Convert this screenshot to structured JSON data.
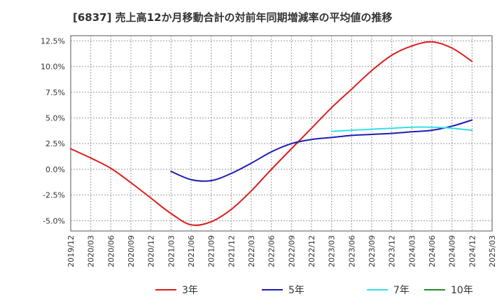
{
  "title": "[6837]  売上高12か月移動合計の対前年同期増減率の平均値の推移",
  "chart_data": {
    "type": "line",
    "title": "[6837]  売上高12か月移動合計の対前年同期増減率の平均値の推移",
    "xlabel": "",
    "ylabel": "",
    "x_ticks": [
      "2019/12",
      "2020/03",
      "2020/06",
      "2020/09",
      "2020/12",
      "2021/03",
      "2021/06",
      "2021/09",
      "2021/12",
      "2022/03",
      "2022/06",
      "2022/09",
      "2022/12",
      "2023/03",
      "2023/06",
      "2023/09",
      "2023/12",
      "2024/03",
      "2024/06",
      "2024/09",
      "2024/12",
      "2025/03"
    ],
    "y_ticks": [
      "12.5%",
      "10.0%",
      "7.5%",
      "5.0%",
      "2.5%",
      "0.0%",
      "-2.5%",
      "-5.0%"
    ],
    "y_tick_values": [
      12.5,
      10.0,
      7.5,
      5.0,
      2.5,
      0.0,
      -2.5,
      -5.0
    ],
    "ylim": [
      -6.0,
      13.0
    ],
    "grid": true,
    "legend_position": "bottom",
    "series": [
      {
        "name": "3年",
        "color": "#dd1c1c",
        "points": [
          [
            "2019/12",
            2.0
          ],
          [
            "2020/03",
            1.1
          ],
          [
            "2020/06",
            0.1
          ],
          [
            "2020/09",
            -1.3
          ],
          [
            "2020/12",
            -2.8
          ],
          [
            "2021/03",
            -4.3
          ],
          [
            "2021/06",
            -5.4
          ],
          [
            "2021/09",
            -5.1
          ],
          [
            "2021/12",
            -3.9
          ],
          [
            "2022/03",
            -2.1
          ],
          [
            "2022/06",
            0.0
          ],
          [
            "2022/09",
            2.0
          ],
          [
            "2022/12",
            4.0
          ],
          [
            "2023/03",
            6.0
          ],
          [
            "2023/06",
            7.8
          ],
          [
            "2023/09",
            9.6
          ],
          [
            "2023/12",
            11.1
          ],
          [
            "2024/03",
            12.0
          ],
          [
            "2024/06",
            12.4
          ],
          [
            "2024/09",
            11.8
          ],
          [
            "2024/12",
            10.5
          ]
        ]
      },
      {
        "name": "5年",
        "color": "#1c1cb4",
        "points": [
          [
            "2021/03",
            -0.2
          ],
          [
            "2021/06",
            -1.0
          ],
          [
            "2021/09",
            -1.1
          ],
          [
            "2021/12",
            -0.4
          ],
          [
            "2022/03",
            0.6
          ],
          [
            "2022/06",
            1.7
          ],
          [
            "2022/09",
            2.5
          ],
          [
            "2022/12",
            2.9
          ],
          [
            "2023/03",
            3.1
          ],
          [
            "2023/06",
            3.3
          ],
          [
            "2023/09",
            3.4
          ],
          [
            "2023/12",
            3.5
          ],
          [
            "2024/03",
            3.65
          ],
          [
            "2024/06",
            3.8
          ],
          [
            "2024/09",
            4.2
          ],
          [
            "2024/12",
            4.8
          ]
        ]
      },
      {
        "name": "7年",
        "color": "#33e0e8",
        "points": [
          [
            "2023/03",
            3.7
          ],
          [
            "2023/06",
            3.8
          ],
          [
            "2023/09",
            3.9
          ],
          [
            "2023/12",
            4.0
          ],
          [
            "2024/03",
            4.1
          ],
          [
            "2024/06",
            4.1
          ],
          [
            "2024/09",
            4.0
          ],
          [
            "2024/12",
            3.8
          ]
        ]
      },
      {
        "name": "10年",
        "color": "#228b22",
        "points": []
      }
    ]
  }
}
